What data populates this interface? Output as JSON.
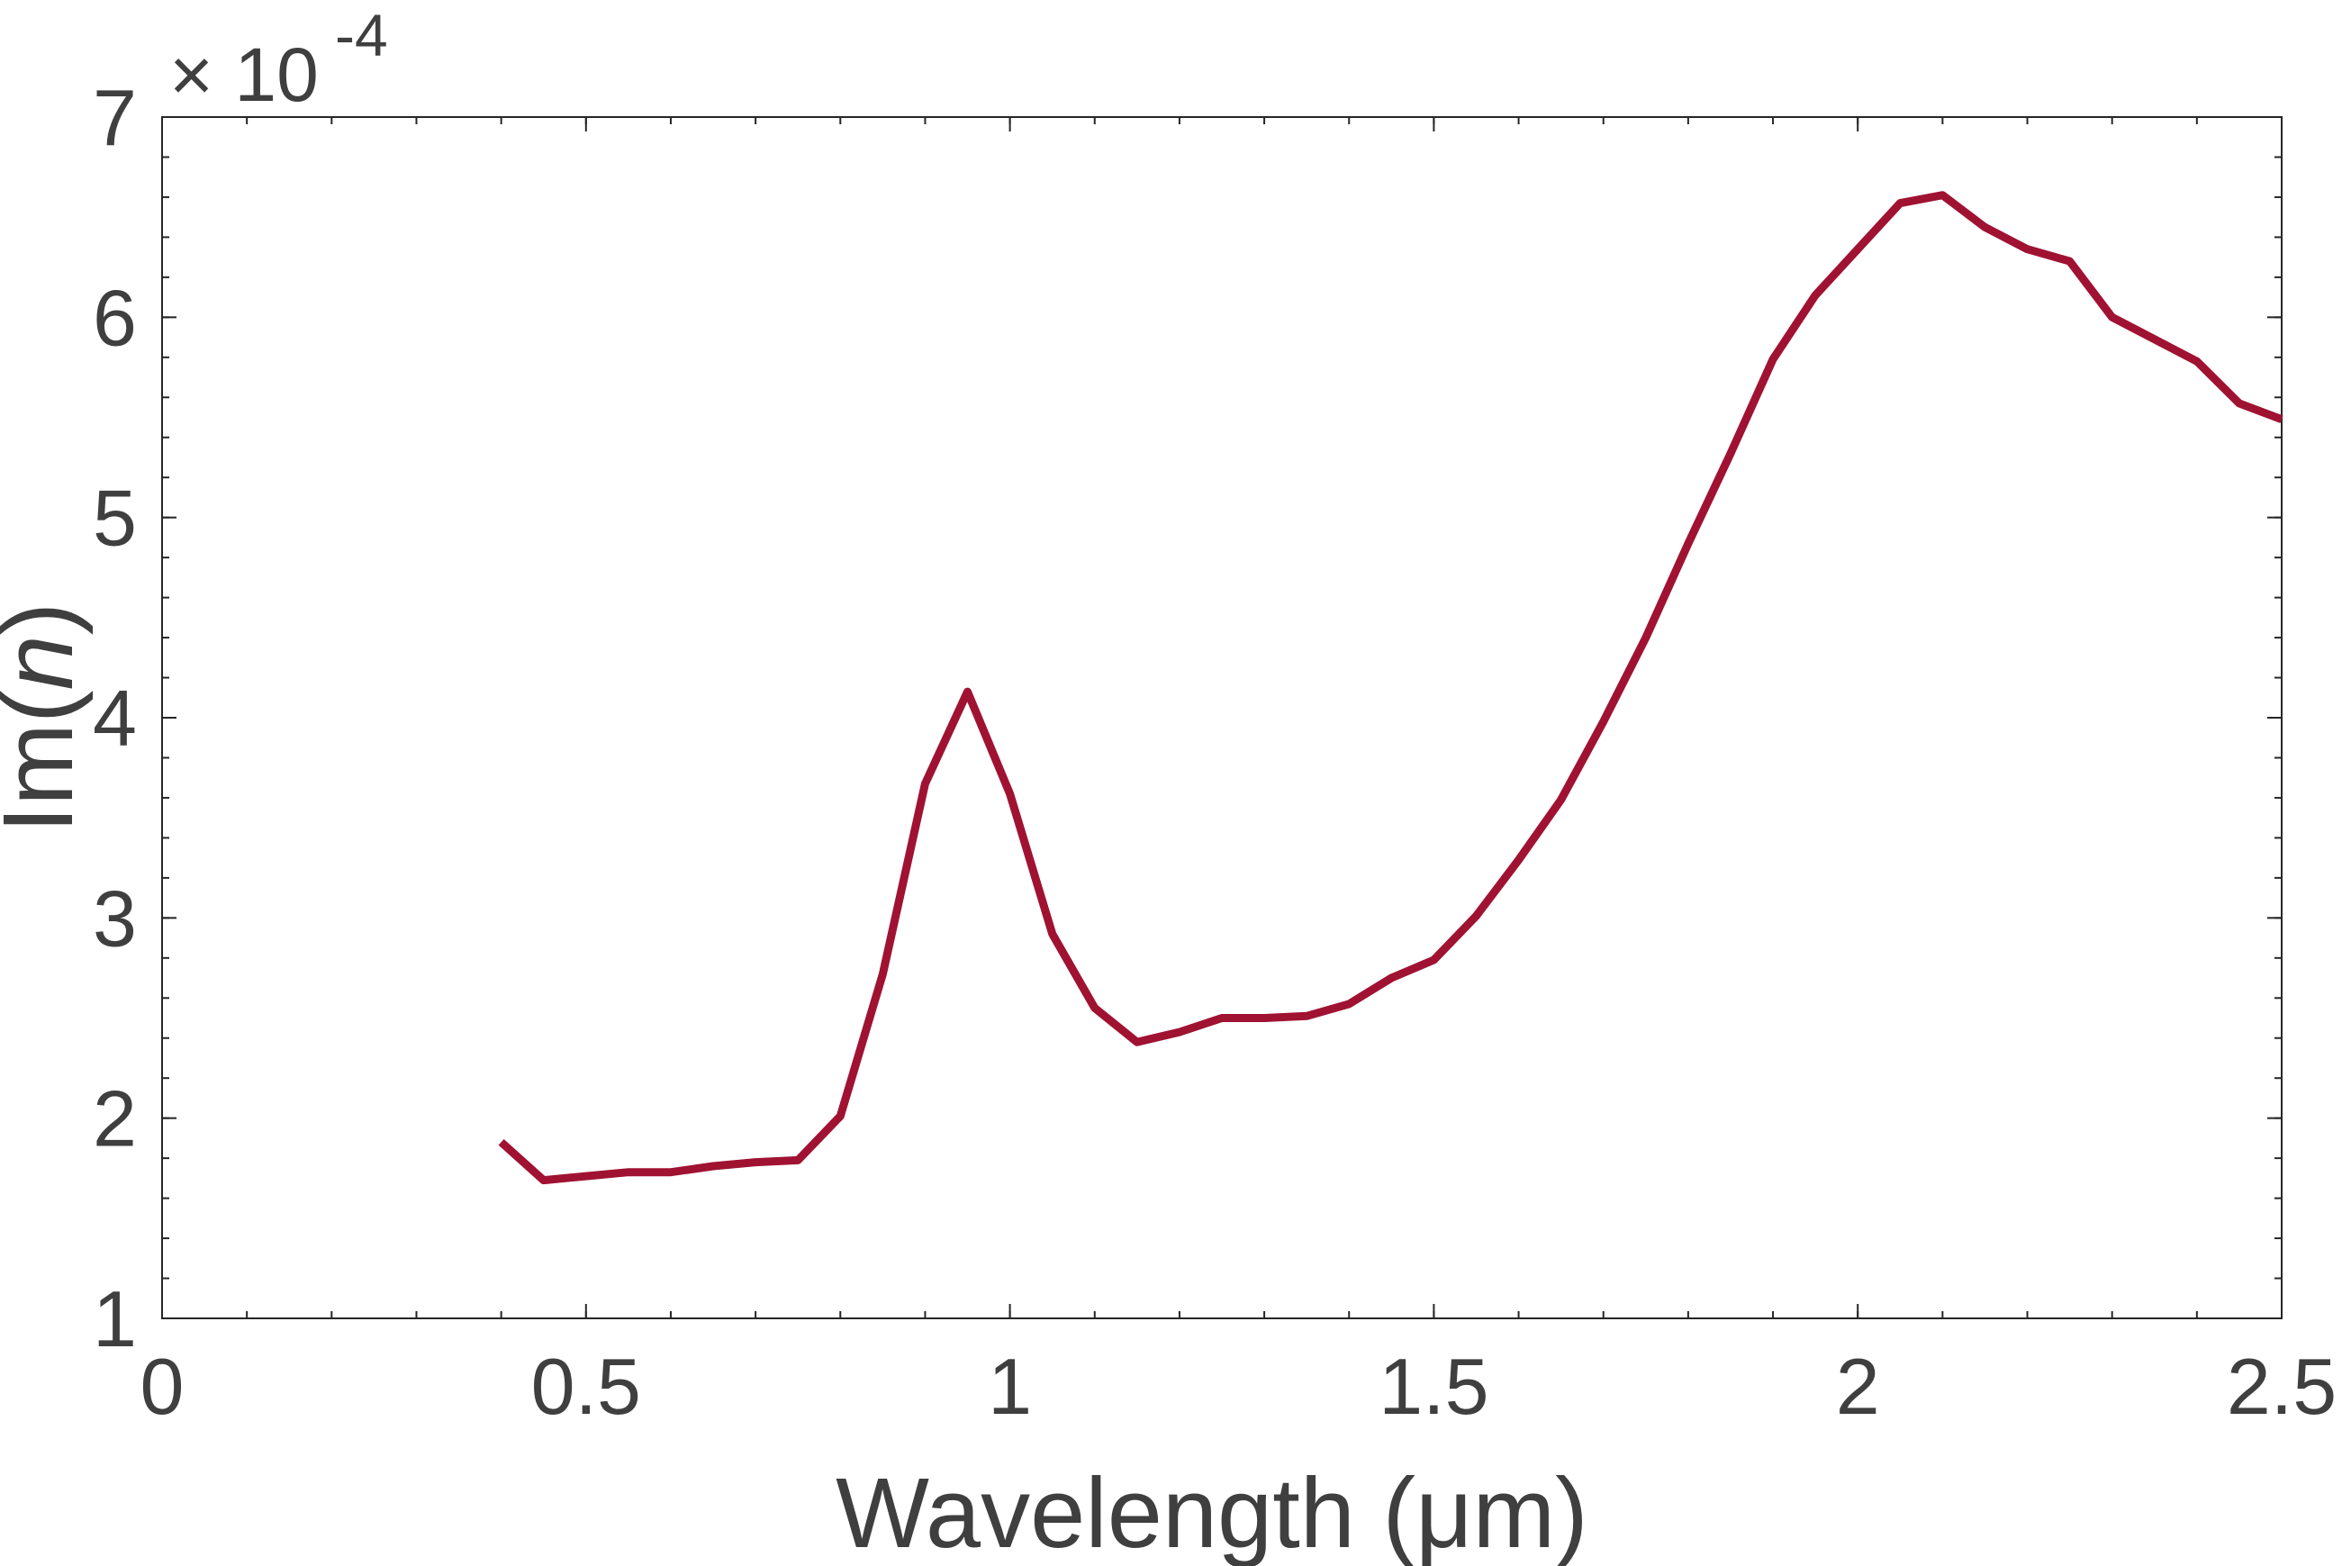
{
  "chart_data": {
    "type": "line",
    "title": "",
    "xlabel": "Wavelength (μm)",
    "ylabel_prefix": "Im(",
    "ylabel_var": "n",
    "ylabel_suffix": ")",
    "y_multiplier": {
      "base": "× 10",
      "exponent": "-4"
    },
    "xlim": [
      0,
      2.5
    ],
    "ylim": [
      1,
      7
    ],
    "x_ticks": [
      0,
      0.5,
      1,
      1.5,
      2,
      2.5
    ],
    "x_tick_labels": [
      "0",
      "0.5",
      "1",
      "1.5",
      "2",
      "2.5"
    ],
    "y_ticks": [
      1,
      2,
      3,
      4,
      5,
      6,
      7
    ],
    "y_tick_labels": [
      "1",
      "2",
      "3",
      "4",
      "5",
      "6",
      "7"
    ],
    "x_minor_step": 0.1,
    "y_minor_step": 0.2,
    "grid": false,
    "legend": "none",
    "series": [
      {
        "color": "#a01232",
        "x": [
          0.4,
          0.45,
          0.5,
          0.55,
          0.6,
          0.65,
          0.7,
          0.75,
          0.8,
          0.85,
          0.9,
          0.95,
          1.0,
          1.05,
          1.1,
          1.15,
          1.2,
          1.25,
          1.3,
          1.35,
          1.4,
          1.45,
          1.5,
          1.55,
          1.6,
          1.65,
          1.7,
          1.75,
          1.8,
          1.85,
          1.9,
          1.95,
          2.0,
          2.05,
          2.1,
          2.15,
          2.2,
          2.25,
          2.3,
          2.35,
          2.4,
          2.45,
          2.5
        ],
        "values": [
          1.88,
          1.69,
          1.71,
          1.73,
          1.73,
          1.76,
          1.78,
          1.79,
          2.01,
          2.72,
          3.67,
          4.13,
          3.62,
          2.92,
          2.55,
          2.38,
          2.43,
          2.5,
          2.5,
          2.51,
          2.57,
          2.7,
          2.79,
          3.01,
          3.29,
          3.59,
          3.98,
          4.4,
          4.87,
          5.32,
          5.79,
          6.11,
          6.34,
          6.57,
          6.61,
          6.45,
          6.34,
          6.28,
          6.0,
          5.89,
          5.78,
          5.57,
          5.49
        ]
      }
    ]
  }
}
